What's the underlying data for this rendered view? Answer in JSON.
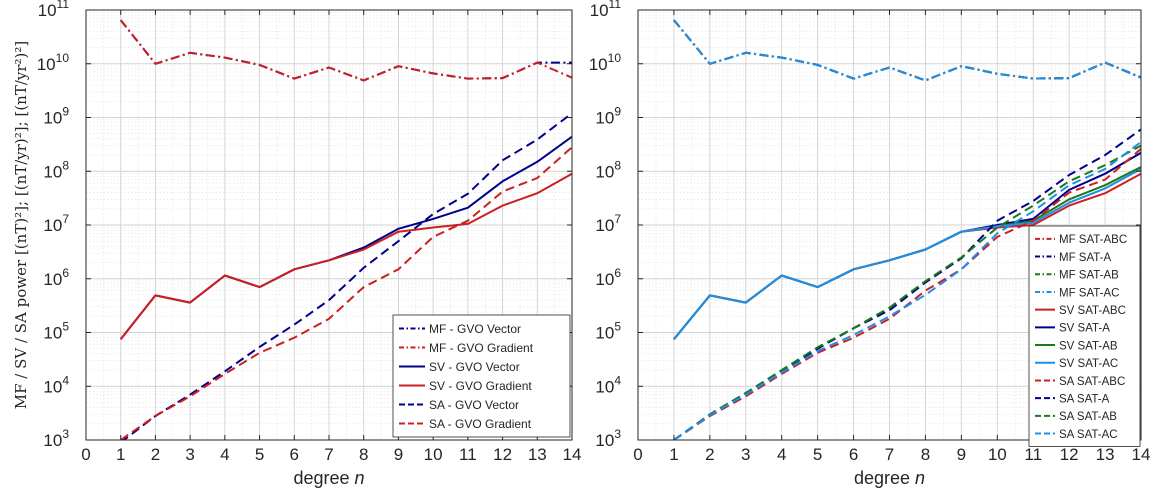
{
  "figure": {
    "ylabel_shared": "MF / SV / SA power [(nT)²]; [(nT/yr)²]; [(nT/yr²)²]"
  },
  "chart_data": [
    {
      "type": "line",
      "xlabel": "degree  n",
      "xlim": [
        0,
        14
      ],
      "xticks": [
        0,
        1,
        2,
        3,
        4,
        5,
        6,
        7,
        8,
        9,
        10,
        11,
        12,
        13,
        14
      ],
      "yscale": "log",
      "ylim": [
        1000,
        100000000000
      ],
      "yticks": [
        3,
        4,
        5,
        6,
        7,
        8,
        9,
        10,
        11
      ],
      "grid": true,
      "legend_position": "bottom-right",
      "series": [
        {
          "name": "MF - GVO Vector",
          "color": "#00008b",
          "dash": "dashdot",
          "x": [
            1,
            2,
            3,
            4,
            5,
            6,
            7,
            8,
            9,
            10,
            11,
            12,
            13,
            14
          ],
          "values": [
            65000000000.0,
            10000000000.0,
            16000000000.0,
            13000000000.0,
            9500000000.0,
            5300000000.0,
            8500000000.0,
            4900000000.0,
            9000000000.0,
            6600000000.0,
            5300000000.0,
            5400000000.0,
            10500000000.0,
            10500000000.0
          ]
        },
        {
          "name": "MF - GVO Gradient",
          "color": "#cc1f1f",
          "dash": "dashdot",
          "x": [
            1,
            2,
            3,
            4,
            5,
            6,
            7,
            8,
            9,
            10,
            11,
            12,
            13,
            14
          ],
          "values": [
            65000000000.0,
            10000000000.0,
            16000000000.0,
            13000000000.0,
            9500000000.0,
            5300000000.0,
            8500000000.0,
            4900000000.0,
            9000000000.0,
            6600000000.0,
            5300000000.0,
            5400000000.0,
            10500000000.0,
            5500000000.0
          ]
        },
        {
          "name": "SV - GVO Vector",
          "color": "#00008b",
          "dash": "solid",
          "x": [
            1,
            2,
            3,
            4,
            5,
            6,
            7,
            8,
            9,
            10,
            11,
            12,
            13,
            14
          ],
          "values": [
            75000.0,
            490000.0,
            360000.0,
            1150000.0,
            700000.0,
            1500000.0,
            2200000.0,
            3800000.0,
            8500000.0,
            13000000.0,
            21000000.0,
            65000000.0,
            150000000.0,
            440000000.0
          ]
        },
        {
          "name": "SV - GVO Gradient",
          "color": "#cc1f1f",
          "dash": "solid",
          "x": [
            1,
            2,
            3,
            4,
            5,
            6,
            7,
            8,
            9,
            10,
            11,
            12,
            13,
            14
          ],
          "values": [
            75000.0,
            490000.0,
            360000.0,
            1150000.0,
            700000.0,
            1500000.0,
            2200000.0,
            3500000.0,
            7500000.0,
            9000000.0,
            10500000.0,
            23000000.0,
            39000000.0,
            90000000.0
          ]
        },
        {
          "name": "SA - GVO Vector",
          "color": "#00008b",
          "dash": "dashed",
          "x": [
            1,
            2,
            3,
            4,
            5,
            6,
            7,
            8,
            9,
            10,
            11,
            12,
            13,
            14
          ],
          "values": [
            900,
            2800,
            7000,
            19000.0,
            54000.0,
            140000.0,
            400000.0,
            1600000.0,
            5000000.0,
            16000000.0,
            38000000.0,
            160000000.0,
            390000000.0,
            1200000000.0
          ]
        },
        {
          "name": "SA - GVO Gradient",
          "color": "#cc1f1f",
          "dash": "dashed",
          "x": [
            1,
            2,
            3,
            4,
            5,
            6,
            7,
            8,
            9,
            10,
            11,
            12,
            13,
            14
          ],
          "values": [
            1000,
            2800,
            6500,
            17000.0,
            42000.0,
            80000.0,
            180000.0,
            700000.0,
            1500000.0,
            6000000.0,
            12000000.0,
            42000000.0,
            75000000.0,
            280000000.0
          ]
        }
      ]
    },
    {
      "type": "line",
      "xlabel": "degree  n",
      "xlim": [
        0,
        14
      ],
      "xticks": [
        0,
        1,
        2,
        3,
        4,
        5,
        6,
        7,
        8,
        9,
        10,
        11,
        12,
        13,
        14
      ],
      "yscale": "log",
      "ylim": [
        1000,
        100000000000
      ],
      "yticks": [
        3,
        4,
        5,
        6,
        7,
        8,
        9,
        10,
        11
      ],
      "grid": true,
      "legend_position": "bottom-right",
      "series": [
        {
          "name": "MF SAT-ABC",
          "color": "#cc1f1f",
          "dash": "dashdot",
          "x": [
            1,
            2,
            3,
            4,
            5,
            6,
            7,
            8,
            9,
            10,
            11,
            12,
            13,
            14
          ],
          "values": [
            65000000000.0,
            10000000000.0,
            16000000000.0,
            13000000000.0,
            9500000000.0,
            5300000000.0,
            8500000000.0,
            4900000000.0,
            9000000000.0,
            6500000000.0,
            5300000000.0,
            5400000000.0,
            10500000000.0,
            5500000000.0
          ]
        },
        {
          "name": "MF SAT-A",
          "color": "#00008b",
          "dash": "dashdot",
          "x": [
            1,
            2,
            3,
            4,
            5,
            6,
            7,
            8,
            9,
            10,
            11,
            12,
            13,
            14
          ],
          "values": [
            65000000000.0,
            10000000000.0,
            16000000000.0,
            13000000000.0,
            9500000000.0,
            5300000000.0,
            8500000000.0,
            4900000000.0,
            9000000000.0,
            6500000000.0,
            5300000000.0,
            5400000000.0,
            10500000000.0,
            5600000000.0
          ]
        },
        {
          "name": "MF SAT-AB",
          "color": "#1a7a1a",
          "dash": "dashdot",
          "x": [
            1,
            2,
            3,
            4,
            5,
            6,
            7,
            8,
            9,
            10,
            11,
            12,
            13,
            14
          ],
          "values": [
            65000000000.0,
            10000000000.0,
            16000000000.0,
            13000000000.0,
            9500000000.0,
            5300000000.0,
            8500000000.0,
            4900000000.0,
            9000000000.0,
            6500000000.0,
            5300000000.0,
            5400000000.0,
            10500000000.0,
            5500000000.0
          ]
        },
        {
          "name": "MF SAT-AC",
          "color": "#1e8ee8",
          "dash": "dashdot",
          "x": [
            1,
            2,
            3,
            4,
            5,
            6,
            7,
            8,
            9,
            10,
            11,
            12,
            13,
            14
          ],
          "values": [
            65000000000.0,
            10000000000.0,
            16000000000.0,
            13000000000.0,
            9500000000.0,
            5300000000.0,
            8500000000.0,
            4900000000.0,
            9000000000.0,
            6500000000.0,
            5300000000.0,
            5400000000.0,
            10500000000.0,
            5500000000.0
          ]
        },
        {
          "name": "SV SAT-ABC",
          "color": "#cc1f1f",
          "dash": "solid",
          "x": [
            1,
            2,
            3,
            4,
            5,
            6,
            7,
            8,
            9,
            10,
            11,
            12,
            13,
            14
          ],
          "values": [
            75000.0,
            490000.0,
            360000.0,
            1150000.0,
            700000.0,
            1500000.0,
            2200000.0,
            3500000.0,
            7500000.0,
            9000000.0,
            10000000.0,
            23000000.0,
            39000000.0,
            90000000.0
          ]
        },
        {
          "name": "SV SAT-A",
          "color": "#00008b",
          "dash": "solid",
          "x": [
            1,
            2,
            3,
            4,
            5,
            6,
            7,
            8,
            9,
            10,
            11,
            12,
            13,
            14
          ],
          "values": [
            75000.0,
            490000.0,
            360000.0,
            1150000.0,
            700000.0,
            1500000.0,
            2200000.0,
            3500000.0,
            7500000.0,
            10000000.0,
            13000000.0,
            45000000.0,
            90000000.0,
            220000000.0
          ]
        },
        {
          "name": "SV SAT-AB",
          "color": "#1a7a1a",
          "dash": "solid",
          "x": [
            1,
            2,
            3,
            4,
            5,
            6,
            7,
            8,
            9,
            10,
            11,
            12,
            13,
            14
          ],
          "values": [
            75000.0,
            490000.0,
            360000.0,
            1150000.0,
            700000.0,
            1500000.0,
            2200000.0,
            3500000.0,
            7500000.0,
            9500000.0,
            12000000.0,
            30000000.0,
            55000000.0,
            120000000.0
          ]
        },
        {
          "name": "SV SAT-AC",
          "color": "#1e8ee8",
          "dash": "solid",
          "x": [
            1,
            2,
            3,
            4,
            5,
            6,
            7,
            8,
            9,
            10,
            11,
            12,
            13,
            14
          ],
          "values": [
            75000.0,
            490000.0,
            360000.0,
            1150000.0,
            700000.0,
            1500000.0,
            2200000.0,
            3500000.0,
            7500000.0,
            9500000.0,
            11000000.0,
            26000000.0,
            48000000.0,
            110000000.0
          ]
        },
        {
          "name": "SA SAT-ABC",
          "color": "#cc1f1f",
          "dash": "dashed",
          "x": [
            1,
            2,
            3,
            4,
            5,
            6,
            7,
            8,
            9,
            10,
            11,
            12,
            13,
            14
          ],
          "values": [
            1000,
            2800,
            6500,
            17000.0,
            42000.0,
            80000.0,
            180000.0,
            600000.0,
            1500000.0,
            6000000.0,
            12000000.0,
            40000000.0,
            70000000.0,
            260000000.0
          ]
        },
        {
          "name": "SA SAT-A",
          "color": "#00008b",
          "dash": "dashed",
          "x": [
            1,
            2,
            3,
            4,
            5,
            6,
            7,
            8,
            9,
            10,
            11,
            12,
            13,
            14
          ],
          "values": [
            1000,
            3000,
            7500,
            19000.0,
            50000.0,
            120000.0,
            260000.0,
            850000.0,
            2400000.0,
            12000000.0,
            28000000.0,
            85000000.0,
            200000000.0,
            600000000.0
          ]
        },
        {
          "name": "SA SAT-AB",
          "color": "#1a7a1a",
          "dash": "dashed",
          "x": [
            1,
            2,
            3,
            4,
            5,
            6,
            7,
            8,
            9,
            10,
            11,
            12,
            13,
            14
          ],
          "values": [
            1000,
            3000,
            7500,
            20000.0,
            53000.0,
            120000.0,
            290000.0,
            900000.0,
            2500000.0,
            9000000.0,
            23000000.0,
            65000000.0,
            130000000.0,
            300000000.0
          ]
        },
        {
          "name": "SA SAT-AC",
          "color": "#1e8ee8",
          "dash": "dashed",
          "x": [
            1,
            2,
            3,
            4,
            5,
            6,
            7,
            8,
            9,
            10,
            11,
            12,
            13,
            14
          ],
          "values": [
            1000,
            2900,
            7000,
            18000.0,
            45000.0,
            90000.0,
            200000.0,
            500000.0,
            1500000.0,
            7000000.0,
            18000000.0,
            55000000.0,
            110000000.0,
            350000000.0
          ]
        }
      ]
    }
  ]
}
